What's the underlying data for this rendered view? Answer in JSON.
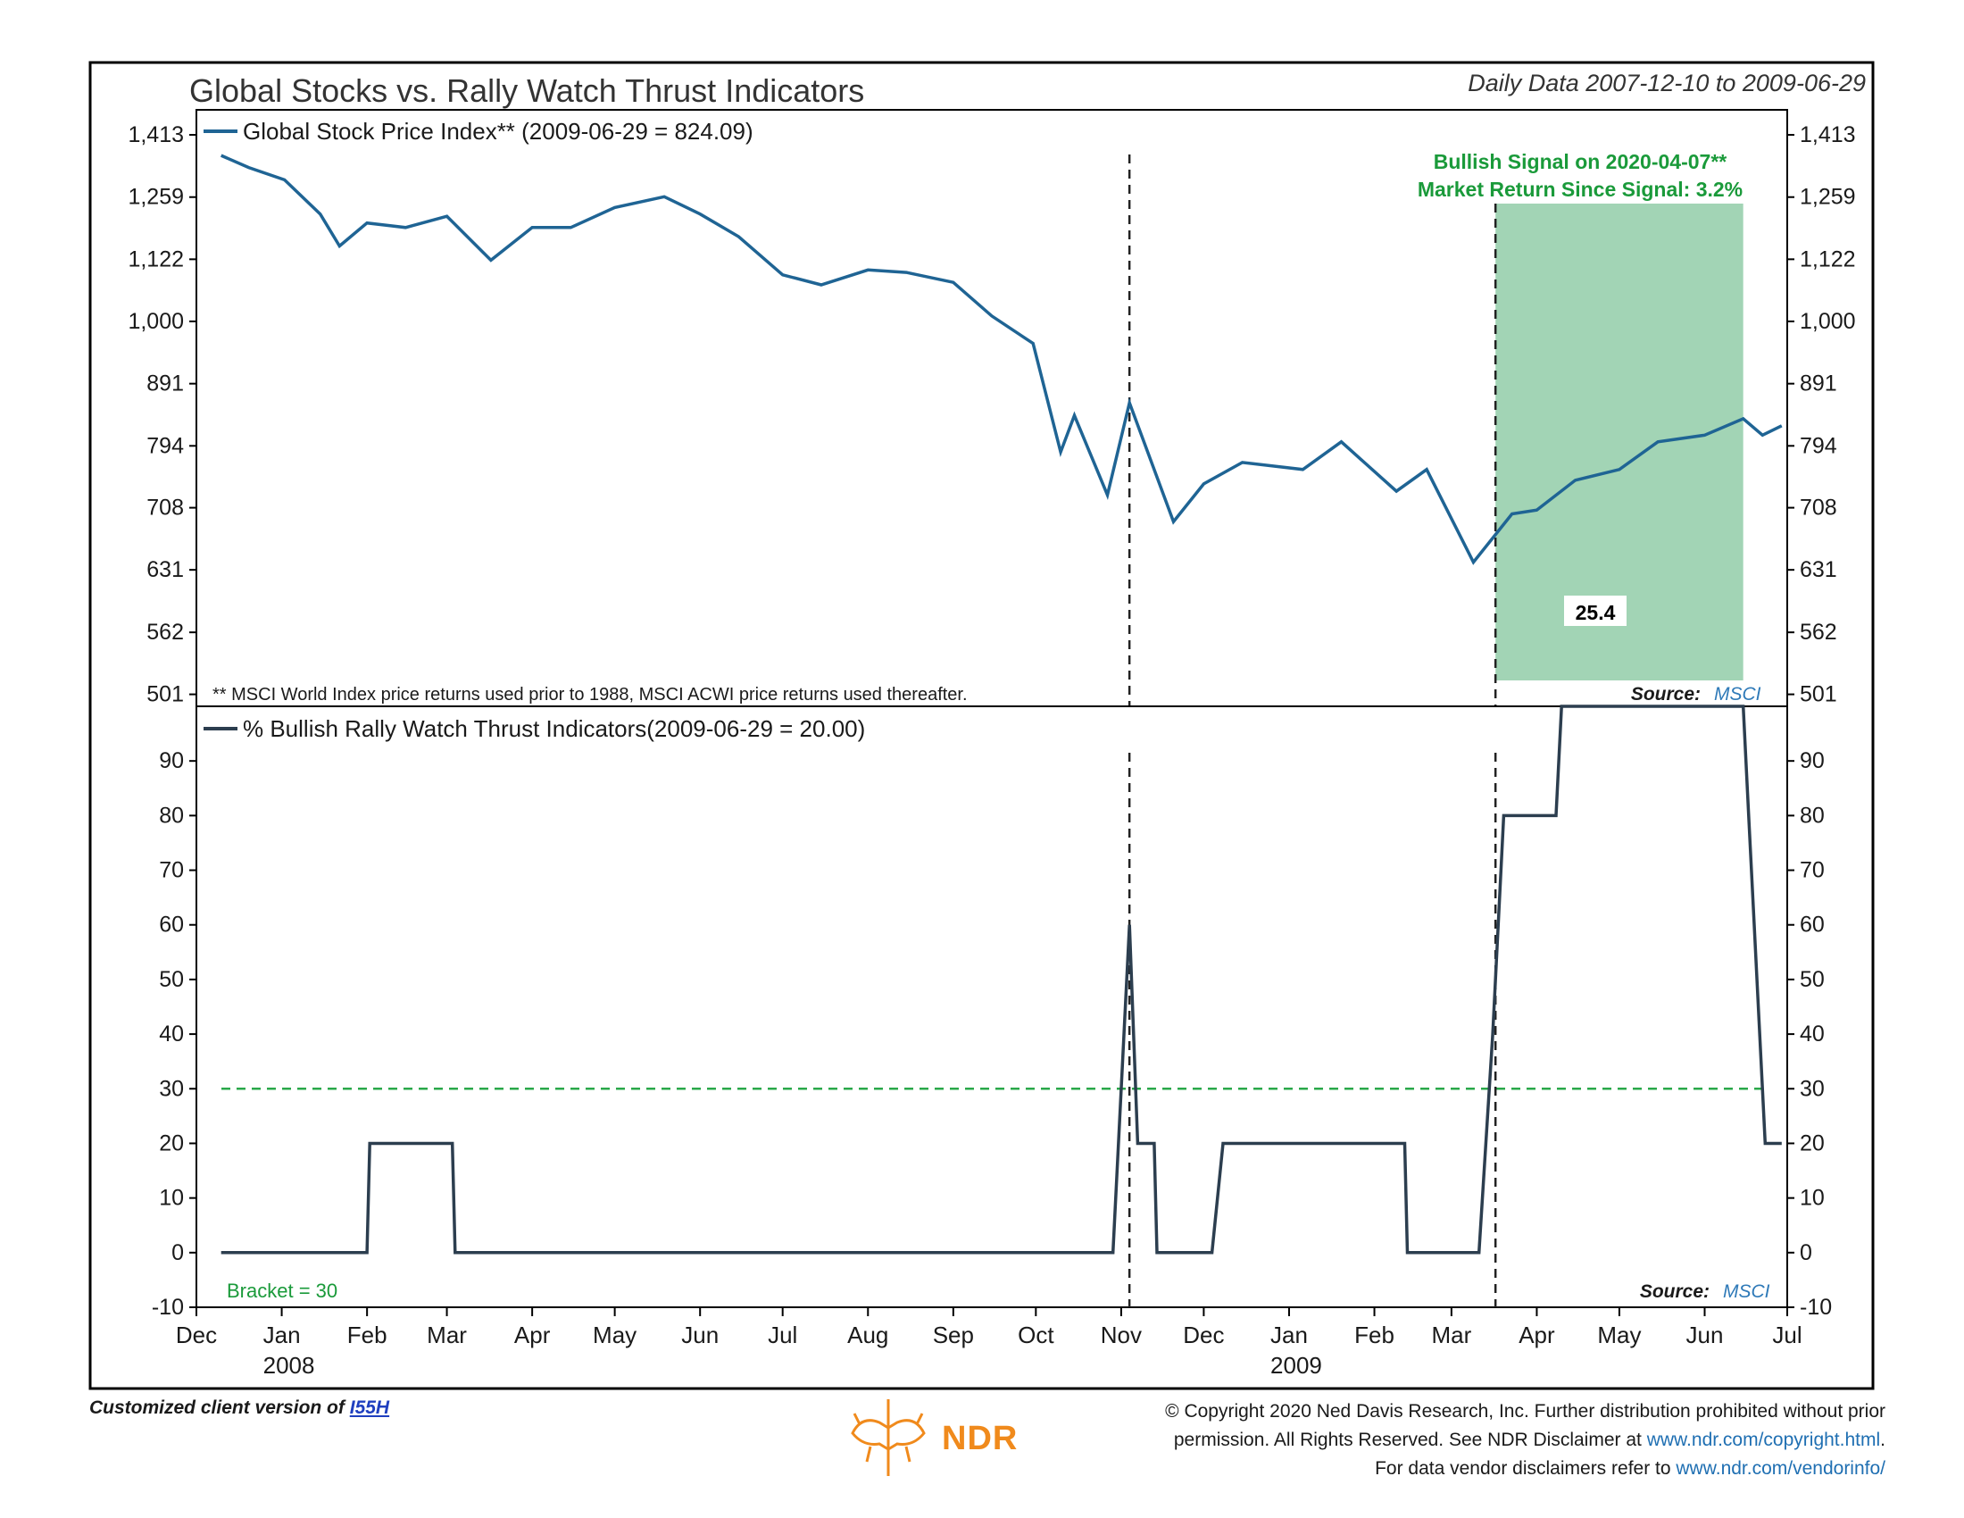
{
  "header": {
    "title": "Global Stocks vs. Rally Watch Thrust Indicators",
    "date_range": "Daily Data 2007-12-10 to 2009-06-29"
  },
  "chart_data": [
    {
      "type": "line",
      "panel": "top",
      "legend": "Global Stock Price Index** (2009-06-29 = 824.09)",
      "series_color": "#1f6494",
      "y_scale": "log",
      "ylim": [
        490,
        1480
      ],
      "y_ticks": [
        501,
        562,
        631,
        708,
        794,
        891,
        1000,
        1122,
        1259,
        1413
      ],
      "y_tick_labels": [
        "501",
        "562",
        "631",
        "708",
        "794",
        "891",
        "1,000",
        "1,122",
        "1,259",
        "1,413"
      ],
      "x_start": "2007-12-10",
      "x_end": "2009-06-29",
      "x": [
        "2007-12-10",
        "2007-12-20",
        "2008-01-02",
        "2008-01-15",
        "2008-01-22",
        "2008-02-01",
        "2008-02-15",
        "2008-03-01",
        "2008-03-17",
        "2008-04-01",
        "2008-04-15",
        "2008-05-01",
        "2008-05-19",
        "2008-06-01",
        "2008-06-15",
        "2008-07-01",
        "2008-07-15",
        "2008-08-01",
        "2008-08-15",
        "2008-09-01",
        "2008-09-15",
        "2008-09-30",
        "2008-10-10",
        "2008-10-15",
        "2008-10-27",
        "2008-11-04",
        "2008-11-20",
        "2008-12-01",
        "2008-12-15",
        "2009-01-06",
        "2009-01-20",
        "2009-02-09",
        "2009-02-20",
        "2009-03-09",
        "2009-03-23",
        "2009-04-01",
        "2009-04-15",
        "2009-05-01",
        "2009-05-15",
        "2009-06-01",
        "2009-06-15",
        "2009-06-22",
        "2009-06-29"
      ],
      "values": [
        1360,
        1330,
        1300,
        1220,
        1150,
        1200,
        1190,
        1215,
        1120,
        1190,
        1190,
        1235,
        1260,
        1220,
        1170,
        1090,
        1070,
        1100,
        1095,
        1075,
        1010,
        960,
        785,
        840,
        725,
        860,
        690,
        740,
        770,
        760,
        800,
        730,
        760,
        640,
        700,
        705,
        745,
        760,
        800,
        810,
        835,
        810,
        824.09
      ],
      "annotations": {
        "signal_line1": "Bullish Signal on 2020-04-07**",
        "signal_line2": "Market Return Since Signal: 3.2%",
        "shaded_start": "2009-03-17",
        "shaded_end": "2009-06-15",
        "value_box": "25.4",
        "vlines": [
          "2008-11-04",
          "2009-03-17"
        ],
        "footnote": "** MSCI World Index price returns used prior to 1988, MSCI ACWI price returns used thereafter.",
        "source_label": "Source:",
        "source": "MSCI"
      }
    },
    {
      "type": "line",
      "panel": "bottom",
      "legend": "% Bullish Rally Watch Thrust Indicators(2009-06-29 = 20.00)",
      "series_color": "#2c3e4f",
      "ylim": [
        -10,
        100
      ],
      "y_ticks": [
        -10,
        0,
        10,
        20,
        30,
        40,
        50,
        60,
        70,
        80,
        90
      ],
      "step_points": [
        [
          "2007-12-10",
          0
        ],
        [
          "2008-02-01",
          0
        ],
        [
          "2008-02-02",
          20
        ],
        [
          "2008-03-03",
          20
        ],
        [
          "2008-03-04",
          0
        ],
        [
          "2008-10-29",
          0
        ],
        [
          "2008-11-04",
          60
        ],
        [
          "2008-11-07",
          20
        ],
        [
          "2008-11-13",
          20
        ],
        [
          "2008-11-14",
          0
        ],
        [
          "2008-12-04",
          0
        ],
        [
          "2008-12-08",
          20
        ],
        [
          "2009-02-12",
          20
        ],
        [
          "2009-02-13",
          0
        ],
        [
          "2009-03-11",
          0
        ],
        [
          "2009-03-16",
          40
        ],
        [
          "2009-03-20",
          80
        ],
        [
          "2009-04-08",
          80
        ],
        [
          "2009-04-10",
          100
        ],
        [
          "2009-06-15",
          100
        ],
        [
          "2009-06-17",
          80
        ],
        [
          "2009-06-19",
          60
        ],
        [
          "2009-06-23",
          20
        ],
        [
          "2009-06-29",
          20
        ]
      ],
      "bracket_value": 30,
      "bracket_label": "Bracket = 30",
      "source_label": "Source:",
      "source": "MSCI"
    }
  ],
  "x_axis": {
    "months": [
      {
        "label": "Dec",
        "date": "2007-12-01"
      },
      {
        "label": "Jan",
        "date": "2008-01-01"
      },
      {
        "label": "Feb",
        "date": "2008-02-01"
      },
      {
        "label": "Mar",
        "date": "2008-03-01"
      },
      {
        "label": "Apr",
        "date": "2008-04-01"
      },
      {
        "label": "May",
        "date": "2008-05-01"
      },
      {
        "label": "Jun",
        "date": "2008-06-01"
      },
      {
        "label": "Jul",
        "date": "2008-07-01"
      },
      {
        "label": "Aug",
        "date": "2008-08-01"
      },
      {
        "label": "Sep",
        "date": "2008-09-01"
      },
      {
        "label": "Oct",
        "date": "2008-10-01"
      },
      {
        "label": "Nov",
        "date": "2008-11-01"
      },
      {
        "label": "Dec",
        "date": "2008-12-01"
      },
      {
        "label": "Jan",
        "date": "2009-01-01"
      },
      {
        "label": "Feb",
        "date": "2009-02-01"
      },
      {
        "label": "Mar",
        "date": "2009-03-01"
      },
      {
        "label": "Apr",
        "date": "2009-04-01"
      },
      {
        "label": "May",
        "date": "2009-05-01"
      },
      {
        "label": "Jun",
        "date": "2009-06-01"
      },
      {
        "label": "Jul",
        "date": "2009-07-01"
      }
    ],
    "years": [
      {
        "label": "2008",
        "date": "2008-01-01"
      },
      {
        "label": "2009",
        "date": "2009-01-01"
      }
    ]
  },
  "footer": {
    "customized_prefix": "Customized client version of",
    "chart_id": "I55H",
    "copyright_line1": "© Copyright 2020 Ned Davis Research, Inc. Further distribution prohibited without prior",
    "copyright_line2": "permission. All Rights Reserved. See NDR Disclaimer at",
    "copyright_url": "www.ndr.com/copyright.html",
    "copyright_line2_end": ".",
    "vendor_line": "For data vendor disclaimers refer to",
    "vendor_url": "www.ndr.com/vendorinfo/",
    "logo_text": "NDR"
  },
  "colors": {
    "signal_text": "#1a9a3a",
    "shade": "#a2d4b5",
    "bracket_line": "#2aa84a",
    "source_text": "#2f7ab8"
  }
}
